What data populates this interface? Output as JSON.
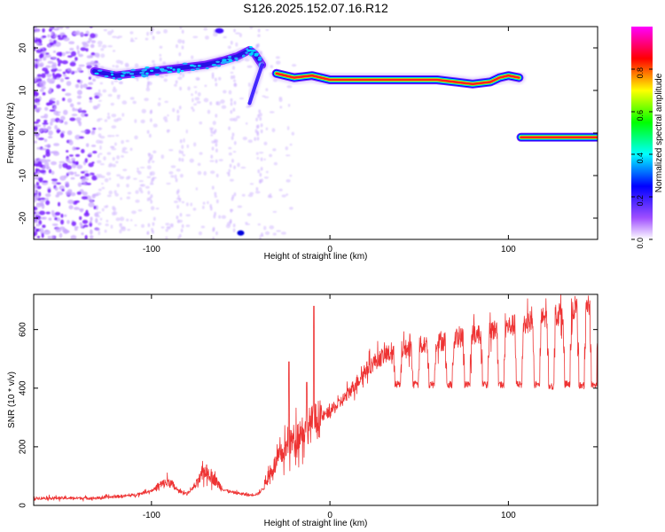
{
  "figure": {
    "title": "S126.2025.152.07.16.R12"
  },
  "chart_data": [
    {
      "type": "heatmap",
      "xlabel": "Height of straight line (km)",
      "ylabel": "Frequency (Hz)",
      "xlim": [
        -166,
        150
      ],
      "ylim": [
        -25,
        25
      ],
      "xticks": [
        -100,
        0,
        100
      ],
      "yticks": [
        -20,
        -10,
        0,
        10,
        20
      ],
      "colorbar": {
        "label": "Normalized spectral amplitude",
        "range": [
          0,
          1
        ],
        "ticks": [
          "0.0",
          "0.2",
          "0.4",
          "0.6",
          "0.8"
        ],
        "tick_values": [
          0,
          0.2,
          0.4,
          0.6,
          0.8
        ],
        "colormap": [
          "#ffffff",
          "#a050ff",
          "#0000ff",
          "#00ffff",
          "#00ff00",
          "#ffff00",
          "#ff0000",
          "#ff00ff"
        ]
      },
      "traces": [
        {
          "segment": "low-altitude band",
          "x": [
            -132,
            -120,
            -110,
            -100,
            -90,
            -80,
            -70,
            -60,
            -52,
            -45,
            -42,
            -38
          ],
          "y": [
            14.5,
            13.5,
            14.0,
            14.5,
            15.0,
            15.5,
            16.0,
            17.0,
            18.0,
            19.5,
            18.5,
            16.0
          ],
          "amplitude": 0.3
        },
        {
          "segment": "falling branch",
          "x": [
            -38,
            -42,
            -45
          ],
          "y": [
            16.0,
            11.0,
            7.0
          ],
          "amplitude": 0.25
        },
        {
          "segment": "mid band",
          "x": [
            -30,
            -20,
            -10,
            0,
            20,
            40,
            60,
            70,
            80,
            90,
            95,
            100,
            106
          ],
          "y": [
            14.0,
            13.0,
            13.5,
            12.5,
            12.5,
            12.5,
            12.5,
            12.0,
            11.5,
            12.0,
            13.0,
            13.5,
            13.0
          ],
          "amplitude": 0.85
        },
        {
          "segment": "zero band",
          "x": [
            107,
            115,
            130,
            150
          ],
          "y": [
            -1.0,
            -1.0,
            -1.0,
            -1.0
          ],
          "amplitude": 0.85
        }
      ]
    },
    {
      "type": "line",
      "xlabel": "Height of straight line (km)",
      "ylabel": "SNR (10 * v/v)",
      "xlim": [
        -166,
        150
      ],
      "ylim": [
        0,
        720
      ],
      "xticks": [
        -100,
        0,
        100
      ],
      "yticks": [
        0,
        200,
        400,
        600
      ],
      "color": "#ee3333",
      "series": [
        {
          "x": [
            -166,
            -150,
            -130,
            -120,
            -110,
            -100,
            -95,
            -90,
            -85,
            -80,
            -75,
            -70,
            -65,
            -60,
            -55,
            -50,
            -45,
            -40,
            -38,
            -35,
            -30,
            -25,
            -20,
            -15,
            -10,
            -5,
            0,
            5,
            10,
            15,
            20,
            25,
            30,
            35,
            40,
            50,
            60,
            70,
            80,
            90,
            100,
            110,
            120,
            130,
            140,
            150
          ],
          "y": [
            25,
            25,
            25,
            30,
            35,
            50,
            70,
            80,
            50,
            40,
            70,
            120,
            90,
            55,
            45,
            40,
            35,
            40,
            55,
            90,
            150,
            190,
            230,
            260,
            280,
            300,
            320,
            345,
            380,
            420,
            460,
            490,
            510,
            520,
            530,
            545,
            555,
            570,
            580,
            595,
            610,
            625,
            640,
            655,
            680,
            690
          ],
          "dips": [
            {
              "x": 38,
              "y": 400
            },
            {
              "x": 48,
              "y": 400
            },
            {
              "x": 57,
              "y": 400
            },
            {
              "x": 67,
              "y": 400
            },
            {
              "x": 77,
              "y": 400
            },
            {
              "x": 87,
              "y": 400
            },
            {
              "x": 96,
              "y": 400
            },
            {
              "x": 106,
              "y": 400
            },
            {
              "x": 116,
              "y": 400
            },
            {
              "x": 124,
              "y": 395
            },
            {
              "x": 133,
              "y": 400
            },
            {
              "x": 141,
              "y": 395
            },
            {
              "x": 148,
              "y": 400
            }
          ],
          "spikes": [
            {
              "x": -23,
              "y": 490
            },
            {
              "x": -9,
              "y": 680
            },
            {
              "x": -13,
              "y": 420
            }
          ]
        }
      ]
    }
  ]
}
